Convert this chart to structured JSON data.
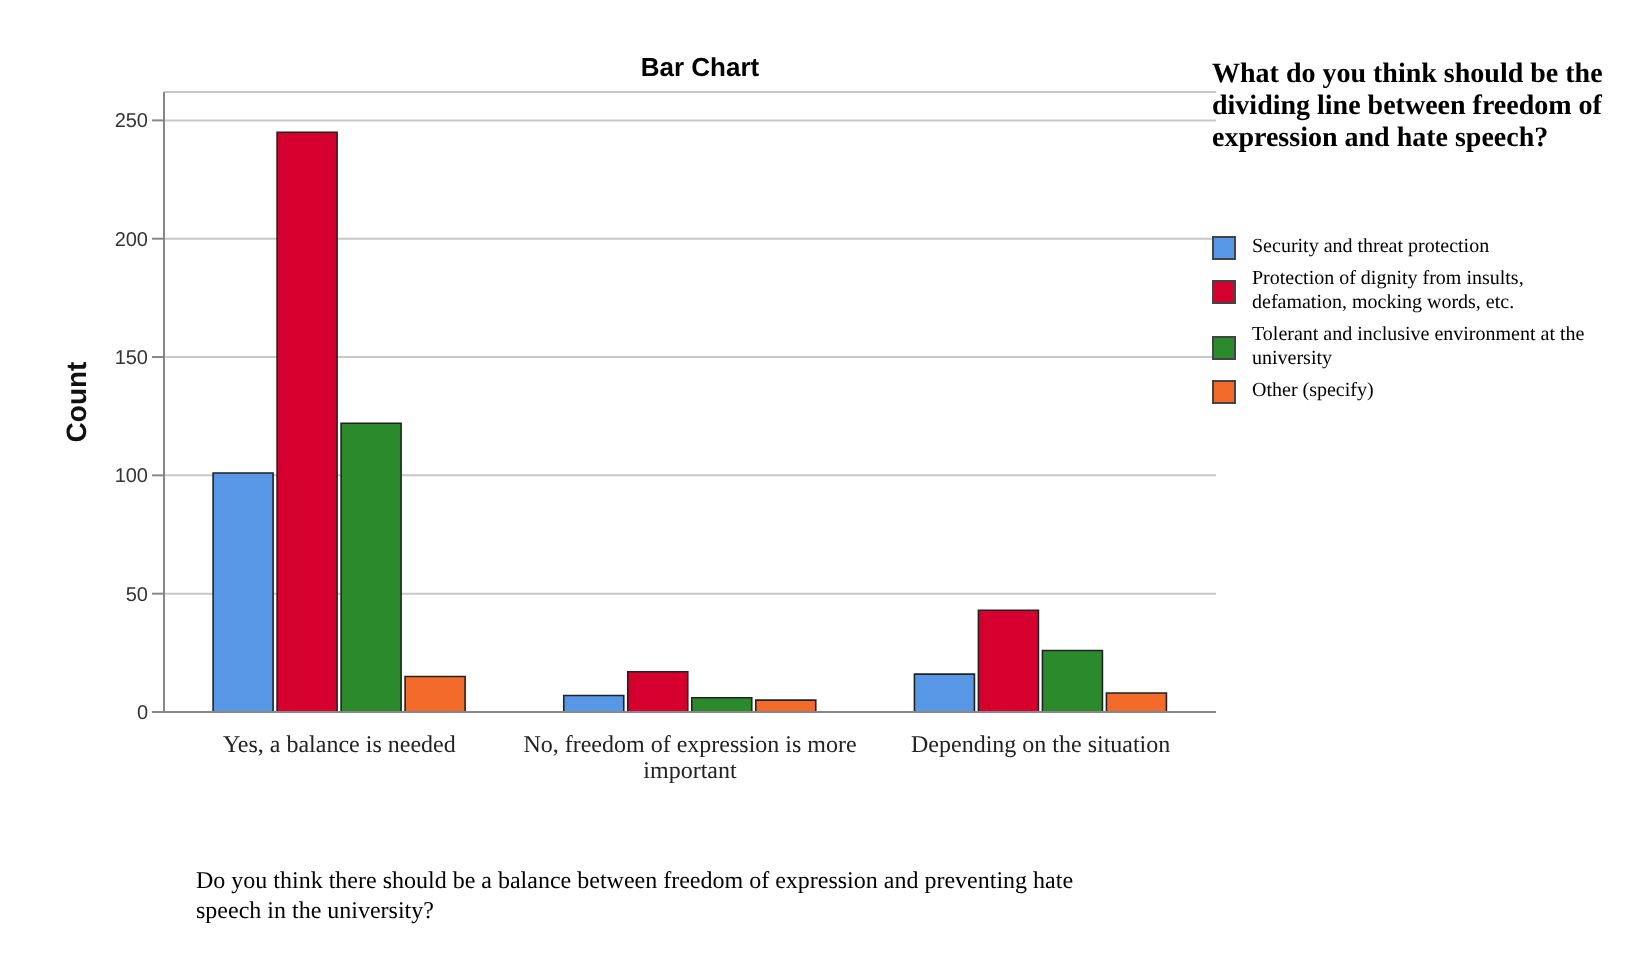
{
  "chart_data": {
    "type": "bar",
    "title": "Bar Chart",
    "xlabel": "Do you think there should be a balance between freedom of expression and preventing hate speech in the university?",
    "ylabel": "Count",
    "legend_title": "What do you think should be the dividing line between freedom of expression and hate speech?",
    "categories": [
      "Yes, a balance is needed",
      "No, freedom of expression is more important",
      "Depending on the situation"
    ],
    "series": [
      {
        "name": "Security and threat protection",
        "color": "#5896e6",
        "values": [
          101,
          7,
          16
        ]
      },
      {
        "name": "Protection of dignity from insults, defamation, mocking words, etc.",
        "color": "#d6002f",
        "values": [
          245,
          17,
          43
        ]
      },
      {
        "name": "Tolerant and inclusive environment at the university",
        "color": "#2b8a2b",
        "values": [
          122,
          6,
          26
        ]
      },
      {
        "name": "Other (specify)",
        "color": "#f26b2a",
        "values": [
          15,
          5,
          8
        ]
      }
    ],
    "ylim": [
      0,
      262
    ],
    "yticks": [
      0,
      50,
      100,
      150,
      200,
      250
    ],
    "grid": "y",
    "legend": "right"
  }
}
